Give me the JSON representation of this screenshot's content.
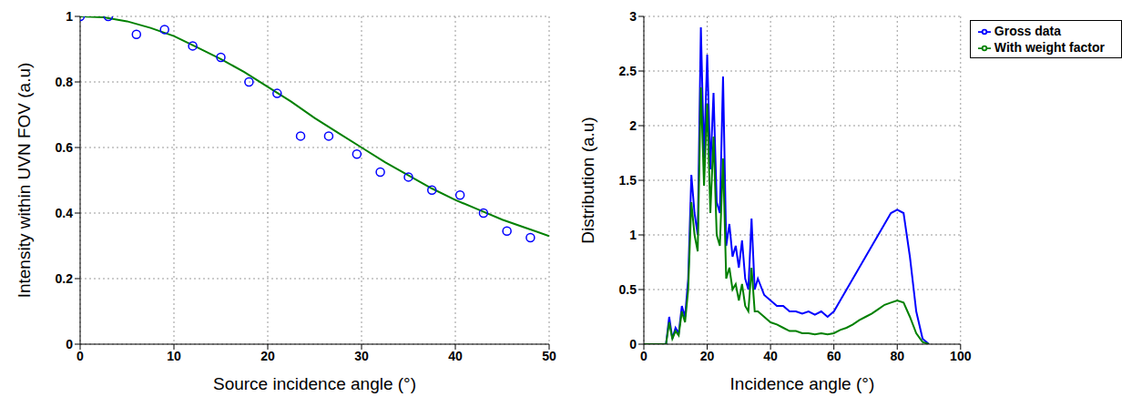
{
  "chart_data": [
    {
      "type": "scatter",
      "x_label": "Source incidence angle (°)",
      "y_label": "Intensity within UVN FOV (a.u)",
      "xlim": [
        0,
        50
      ],
      "xticks": [
        0,
        10,
        20,
        30,
        40,
        50
      ],
      "ylim": [
        0,
        1
      ],
      "yticks": [
        0,
        0.2,
        0.4,
        0.6,
        0.8,
        1
      ],
      "grid": true,
      "series": [
        {
          "type": "scatter",
          "color": "#0000ff",
          "marker": "circle",
          "x": [
            0,
            3,
            6,
            9,
            12,
            15,
            18,
            21,
            23.5,
            26.5,
            29.5,
            32,
            35,
            37.5,
            40.5,
            43,
            45.5,
            48
          ],
          "values": [
            1,
            1,
            0.945,
            0.96,
            0.91,
            0.875,
            0.8,
            0.765,
            0.635,
            0.635,
            0.58,
            0.525,
            0.51,
            0.47,
            0.455,
            0.4,
            0.345,
            0.325
          ]
        },
        {
          "type": "line",
          "color": "#008000",
          "line_style": "solid",
          "x": [
            0,
            2.5,
            5,
            7.5,
            10,
            12.5,
            15,
            17.5,
            20,
            22.5,
            25,
            27.5,
            30,
            32.5,
            35,
            37.5,
            40,
            42.5,
            45,
            47.5,
            50
          ],
          "values": [
            1,
            0.997,
            0.985,
            0.965,
            0.94,
            0.905,
            0.87,
            0.83,
            0.785,
            0.74,
            0.69,
            0.645,
            0.6,
            0.555,
            0.515,
            0.475,
            0.44,
            0.41,
            0.38,
            0.355,
            0.33
          ]
        }
      ]
    },
    {
      "type": "line",
      "x_label": "Incidence angle (°)",
      "y_label": "Distribution (a.u)",
      "xlim": [
        0,
        100
      ],
      "xticks": [
        0,
        20,
        40,
        60,
        80,
        100
      ],
      "ylim": [
        0,
        3
      ],
      "yticks": [
        0,
        0.5,
        1,
        1.5,
        2,
        2.5,
        3
      ],
      "grid": true,
      "legend": "upper right",
      "series": [
        {
          "name": "Gross data",
          "type": "line",
          "color": "#0000ff",
          "line_style": "solid",
          "x": [
            0,
            2,
            4,
            6,
            7,
            8,
            9,
            10,
            11,
            12,
            13,
            14,
            15,
            16,
            17,
            18,
            19,
            20,
            21,
            22,
            23,
            24,
            25,
            26,
            27,
            28,
            29,
            30,
            31,
            32,
            33,
            34,
            35,
            36,
            38,
            40,
            42,
            44,
            46,
            48,
            50,
            52,
            54,
            56,
            58,
            60,
            62,
            64,
            66,
            68,
            70,
            72,
            74,
            76,
            78,
            80,
            82,
            84,
            86,
            88,
            90
          ],
          "values": [
            0,
            0,
            0,
            0,
            0,
            0.25,
            0.05,
            0.15,
            0.1,
            0.35,
            0.25,
            0.6,
            1.55,
            1.2,
            1.0,
            2.9,
            1.7,
            2.65,
            1.6,
            2.3,
            1.3,
            1.2,
            2.45,
            0.9,
            1.1,
            0.8,
            0.9,
            0.7,
            0.95,
            0.6,
            0.5,
            1.15,
            0.5,
            0.6,
            0.45,
            0.4,
            0.35,
            0.35,
            0.3,
            0.3,
            0.28,
            0.3,
            0.27,
            0.3,
            0.25,
            0.3,
            0.4,
            0.5,
            0.6,
            0.7,
            0.8,
            0.9,
            1.0,
            1.1,
            1.2,
            1.23,
            1.2,
            0.8,
            0.3,
            0.05,
            0
          ]
        },
        {
          "name": "With weight factor",
          "type": "line",
          "color": "#008000",
          "line_style": "solid",
          "x": [
            0,
            2,
            4,
            6,
            7,
            8,
            9,
            10,
            11,
            12,
            13,
            14,
            15,
            16,
            17,
            18,
            19,
            20,
            21,
            22,
            23,
            24,
            25,
            26,
            27,
            28,
            29,
            30,
            31,
            32,
            33,
            34,
            35,
            36,
            38,
            40,
            42,
            44,
            46,
            48,
            50,
            52,
            54,
            56,
            58,
            60,
            62,
            64,
            66,
            68,
            70,
            72,
            74,
            76,
            78,
            80,
            82,
            84,
            86,
            88,
            90
          ],
          "values": [
            0,
            0,
            0,
            0,
            0,
            0.2,
            0.05,
            0.12,
            0.08,
            0.3,
            0.2,
            0.5,
            1.3,
            1.0,
            0.85,
            2.35,
            1.45,
            2.2,
            1.2,
            1.9,
            1.0,
            0.9,
            1.7,
            0.6,
            0.7,
            0.5,
            0.55,
            0.4,
            0.55,
            0.35,
            0.3,
            0.7,
            0.3,
            0.3,
            0.25,
            0.2,
            0.18,
            0.15,
            0.12,
            0.12,
            0.1,
            0.1,
            0.09,
            0.1,
            0.09,
            0.1,
            0.13,
            0.15,
            0.18,
            0.22,
            0.25,
            0.28,
            0.32,
            0.36,
            0.38,
            0.4,
            0.38,
            0.25,
            0.1,
            0.02,
            0
          ]
        }
      ]
    }
  ]
}
